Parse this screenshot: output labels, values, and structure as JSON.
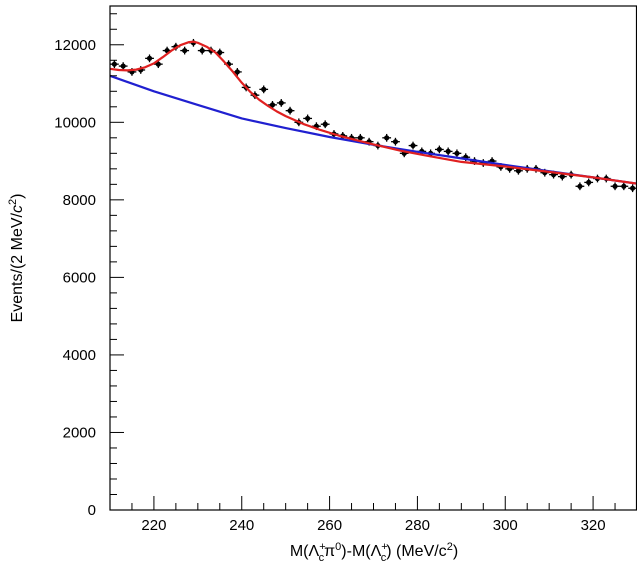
{
  "chart_data": {
    "type": "scatter",
    "xlabel": {
      "prefix": "M(",
      "lambda1": "Λ",
      "lambda1_sub": "c",
      "lambda1_sup": "+",
      "pi": "π",
      "pi_sup": "0",
      "mid": ")-M(",
      "lambda2": "Λ",
      "lambda2_sub": "c",
      "lambda2_sup": "+",
      "units_open": ") (MeV/c",
      "units_sup": "2",
      "units_close": ")"
    },
    "ylabel": {
      "main": "Events/(2 MeV/",
      "c": "c",
      "sup": "2",
      "close": ")"
    },
    "xlim": [
      210,
      330
    ],
    "ylim": [
      0,
      13000
    ],
    "x_ticks": [
      220,
      240,
      260,
      280,
      300,
      320
    ],
    "y_ticks": [
      0,
      2000,
      4000,
      6000,
      8000,
      10000,
      12000
    ],
    "grid": false,
    "series": [
      {
        "type": "points",
        "color": "#000000",
        "x": [
          211,
          213,
          215,
          217,
          219,
          221,
          223,
          225,
          227,
          229,
          231,
          233,
          235,
          237,
          239,
          241,
          243,
          245,
          247,
          249,
          251,
          253,
          255,
          257,
          259,
          261,
          263,
          265,
          267,
          269,
          271,
          273,
          275,
          277,
          279,
          281,
          283,
          285,
          287,
          289,
          291,
          293,
          295,
          297,
          299,
          301,
          303,
          305,
          307,
          309,
          311,
          313,
          315,
          317,
          319,
          321,
          323,
          325,
          327,
          329
        ],
        "y": [
          11500,
          11450,
          11300,
          11350,
          11650,
          11500,
          11850,
          11950,
          11850,
          12050,
          11850,
          11850,
          11800,
          11500,
          11300,
          10900,
          10700,
          10850,
          10450,
          10500,
          10300,
          10000,
          10100,
          9900,
          9950,
          9700,
          9650,
          9600,
          9600,
          9500,
          9400,
          9600,
          9500,
          9200,
          9400,
          9250,
          9200,
          9300,
          9250,
          9200,
          9100,
          9000,
          8950,
          9000,
          8850,
          8800,
          8750,
          8800,
          8800,
          8700,
          8650,
          8600,
          8650,
          8350,
          8450,
          8550,
          8550,
          8350,
          8350,
          8300
        ],
        "yerr": 100,
        "xerr": 1
      },
      {
        "type": "line",
        "color": "#2020d0",
        "x": [
          210,
          220,
          230,
          240,
          250,
          260,
          270,
          280,
          290,
          300,
          310,
          320,
          330
        ],
        "y": [
          11200,
          10800,
          10450,
          10100,
          9850,
          9620,
          9420,
          9240,
          9070,
          8900,
          8740,
          8580,
          8420
        ]
      },
      {
        "type": "line",
        "color": "#e02020",
        "x": [
          210,
          212,
          214,
          216,
          218,
          220,
          222,
          224,
          226,
          228,
          229,
          230,
          232,
          234,
          236,
          238,
          240,
          242,
          244,
          246,
          248,
          250,
          254,
          258,
          262,
          266,
          270,
          276,
          282,
          290,
          300,
          310,
          320,
          330
        ],
        "y": [
          11380,
          11350,
          11340,
          11360,
          11420,
          11520,
          11680,
          11850,
          11990,
          12070,
          12080,
          12050,
          11950,
          11800,
          11560,
          11300,
          11020,
          10780,
          10580,
          10420,
          10280,
          10160,
          9960,
          9800,
          9660,
          9540,
          9430,
          9270,
          9140,
          8980,
          8860,
          8720,
          8580,
          8420
        ]
      }
    ]
  }
}
